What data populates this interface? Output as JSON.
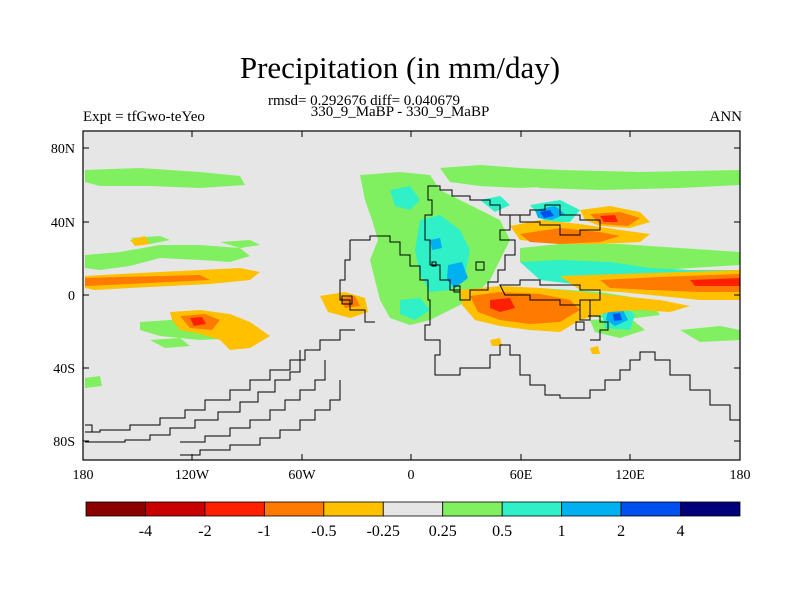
{
  "title": "Precipitation (in mm/day)",
  "stats_line": "rmsd= 0.292676 diff= 0.040679",
  "case_line": "330_9_MaBP - 330_9_MaBP",
  "expt_label": "Expt = tfGwo-teYeo",
  "season_label": "ANN",
  "lat_ticks": [
    "80N",
    "40N",
    "0",
    "40S",
    "80S"
  ],
  "lon_ticks": [
    "180",
    "120W",
    "60W",
    "0",
    "60E",
    "120E",
    "180"
  ],
  "colorbar": {
    "colors": [
      "#8b0000",
      "#c80000",
      "#ff2000",
      "#ff7a00",
      "#ffc000",
      "#e6e6e6",
      "#80f060",
      "#30f0c8",
      "#00b0f0",
      "#0050f0",
      "#00007a"
    ],
    "labels": [
      "-4",
      "-2",
      "-1",
      "-0.5",
      "-0.25",
      "0.25",
      "0.5",
      "1",
      "2",
      "4"
    ]
  }
}
